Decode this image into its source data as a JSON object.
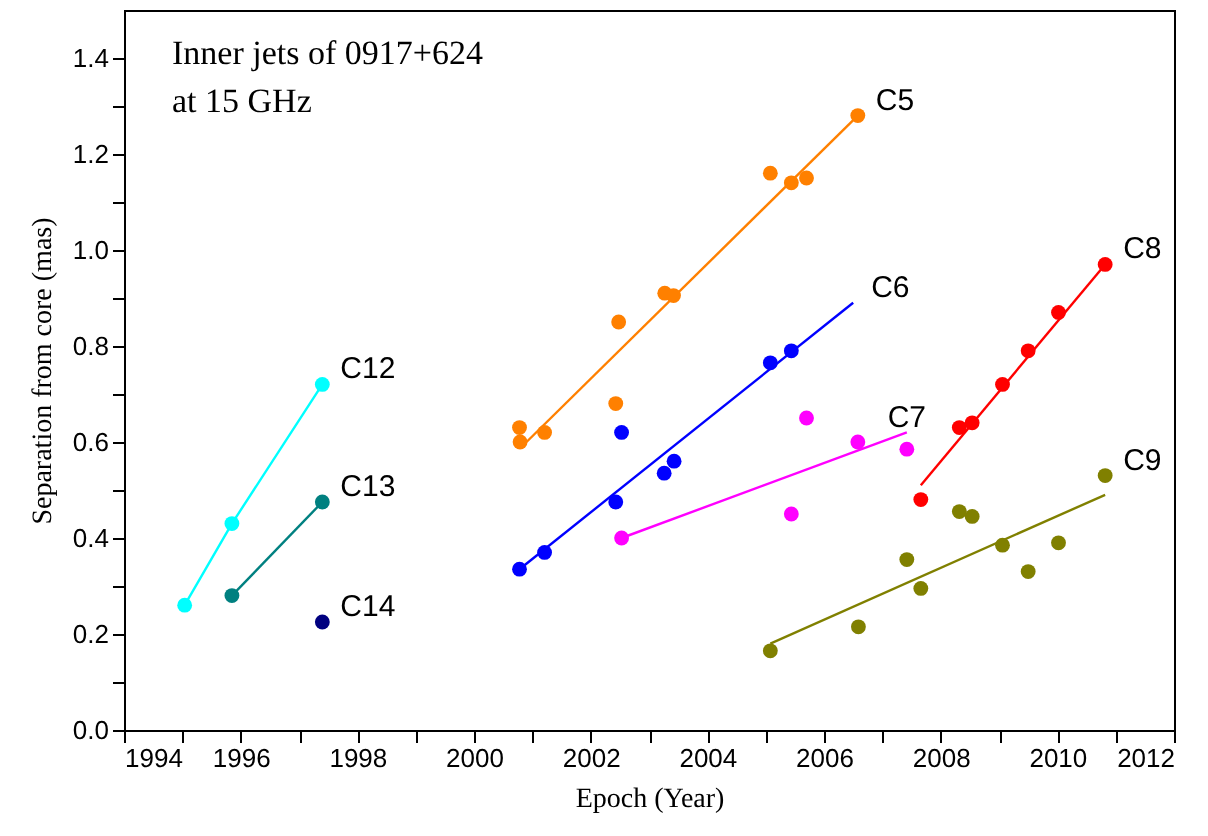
{
  "chart_data": {
    "type": "scatter",
    "xlabel": "Epoch (Year)",
    "ylabel": "Separation from core (mas)",
    "annotations": [
      "Inner jets of 0917+624",
      "at 15 GHz"
    ],
    "xlim": [
      1994,
      2012
    ],
    "xticks": [
      1994,
      {
        "value": 1995,
        "label": null
      },
      1996,
      {
        "value": 1997,
        "label": null
      },
      1998,
      {
        "value": 1999,
        "label": null
      },
      2000,
      {
        "value": 2001,
        "label": null
      },
      2002,
      {
        "value": 2003,
        "label": null
      },
      2004,
      {
        "value": 2005,
        "label": null
      },
      2006,
      {
        "value": 2007,
        "label": null
      },
      2008,
      {
        "value": 2009,
        "label": null
      },
      2010,
      {
        "value": 2011,
        "label": null
      },
      2012
    ],
    "ylim": [
      0,
      1.5
    ],
    "yticks": [
      {
        "value": 0,
        "label": "0.0"
      },
      {
        "value": 0.1,
        "label": null
      },
      0.2,
      {
        "value": 0.3,
        "label": null
      },
      0.4,
      {
        "value": 0.5,
        "label": null
      },
      0.6,
      {
        "value": 0.7,
        "label": null
      },
      0.8,
      {
        "value": 0.9,
        "label": null
      },
      {
        "value": 1,
        "label": "1.0"
      },
      {
        "value": 1.1,
        "label": null
      },
      1.2,
      {
        "value": 1.3,
        "label": null
      },
      1.4
    ],
    "grid": false,
    "marker": "circle",
    "series": [
      {
        "name": "C12",
        "type": "line",
        "color": "#00ffff",
        "x": [
          1995.04,
          1995.85,
          1997.4
        ],
        "values": [
          0.26,
          0.43,
          0.72
        ]
      },
      {
        "name": "C13",
        "type": "line",
        "color": "#008080",
        "x": [
          1995.85,
          1997.4
        ],
        "values": [
          0.28,
          0.475
        ]
      },
      {
        "name": "C14",
        "type": "scatter",
        "color": "#000080",
        "x": [
          1997.4
        ],
        "values": [
          0.225
        ]
      },
      {
        "name": "C5",
        "type": "scatter",
        "color": "#ff8000",
        "x": [
          2000.78,
          2000.79,
          2001.21,
          2002.43,
          2002.48,
          2003.27,
          2003.42,
          2005.08,
          2005.44,
          2005.7,
          2006.58
        ],
        "values": [
          0.63,
          0.6,
          0.62,
          0.68,
          0.85,
          0.91,
          0.905,
          1.16,
          1.14,
          1.15,
          1.28
        ]
      },
      {
        "type": "line",
        "marker": "none",
        "color": "#ff8000",
        "x": [
          2000.9,
          2006.58
        ],
        "values": [
          0.6,
          1.28
        ]
      },
      {
        "name": "C6",
        "type": "scatter",
        "color": "#0000ff",
        "x": [
          2000.78,
          2001.21,
          2002.43,
          2002.53,
          2003.26,
          2003.43,
          2005.08,
          2005.44
        ],
        "values": [
          0.335,
          0.37,
          0.475,
          0.62,
          0.535,
          0.56,
          0.765,
          0.79
        ]
      },
      {
        "type": "line",
        "marker": "none",
        "color": "#0000ff",
        "x": [
          2000.78,
          2006.5
        ],
        "values": [
          0.335,
          0.89
        ]
      },
      {
        "name": "C7",
        "type": "scatter",
        "color": "#ff00ff",
        "x": [
          2002.53,
          2005.44,
          2005.7,
          2006.58,
          2007.42
        ],
        "values": [
          0.4,
          0.45,
          0.65,
          0.6,
          0.585
        ]
      },
      {
        "type": "line",
        "marker": "none",
        "color": "#ff00ff",
        "x": [
          2002.53,
          2007.42
        ],
        "values": [
          0.4,
          0.62
        ]
      },
      {
        "name": "C8",
        "type": "scatter",
        "color": "#ff0000",
        "x": [
          2007.66,
          2008.32,
          2008.54,
          2009.06,
          2009.5,
          2010.02,
          2010.82
        ],
        "values": [
          0.48,
          0.63,
          0.64,
          0.72,
          0.79,
          0.87,
          0.97
        ]
      },
      {
        "type": "line",
        "marker": "none",
        "color": "#ff0000",
        "x": [
          2007.66,
          2010.82
        ],
        "values": [
          0.51,
          0.97
        ]
      },
      {
        "name": "C9",
        "type": "scatter",
        "color": "#808000",
        "x": [
          2005.08,
          2006.59,
          2007.42,
          2007.66,
          2008.32,
          2008.54,
          2009.06,
          2009.5,
          2010.02,
          2010.82
        ],
        "values": [
          0.165,
          0.215,
          0.355,
          0.295,
          0.455,
          0.445,
          0.385,
          0.33,
          0.39,
          0.53
        ]
      },
      {
        "type": "line",
        "marker": "none",
        "color": "#808000",
        "x": [
          2005.08,
          2010.82
        ],
        "values": [
          0.18,
          0.49
        ]
      }
    ]
  }
}
